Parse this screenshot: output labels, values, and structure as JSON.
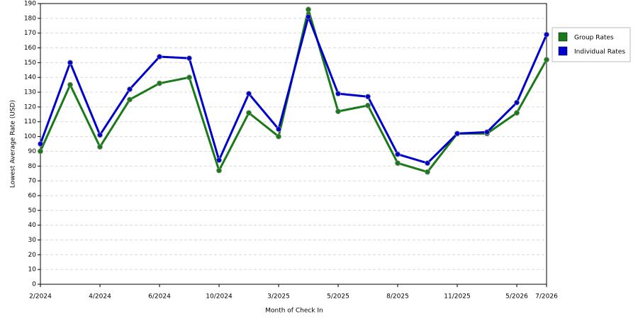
{
  "chart_data": {
    "type": "line",
    "x_label": "Month of Check In",
    "y_label": "Lowest Average Rate (USD)",
    "categories": [
      "2/2024",
      null,
      "4/2024",
      null,
      "6/2024",
      null,
      "10/2024",
      null,
      "3/2025",
      null,
      "5/2025",
      null,
      "8/2025",
      null,
      "11/2025",
      null,
      "5/2026",
      "7/2026"
    ],
    "series": [
      {
        "name": "Group Rates",
        "color": "#1a7a1a",
        "values": [
          90,
          135,
          93,
          125,
          136,
          140,
          77,
          116,
          100,
          186,
          117,
          121,
          82,
          76,
          102,
          102,
          116,
          152
        ]
      },
      {
        "name": "Individual Rates",
        "color": "#0000cc",
        "values": [
          95,
          150,
          101,
          132,
          154,
          153,
          84,
          129,
          105,
          181,
          129,
          127,
          88,
          82,
          102,
          103,
          123,
          169
        ]
      }
    ],
    "ylim": [
      0,
      190
    ],
    "yticks": [
      0,
      10,
      20,
      30,
      40,
      50,
      60,
      70,
      80,
      90,
      100,
      110,
      120,
      130,
      140,
      150,
      160,
      170,
      180,
      190
    ],
    "grid": true,
    "legend": "right"
  }
}
